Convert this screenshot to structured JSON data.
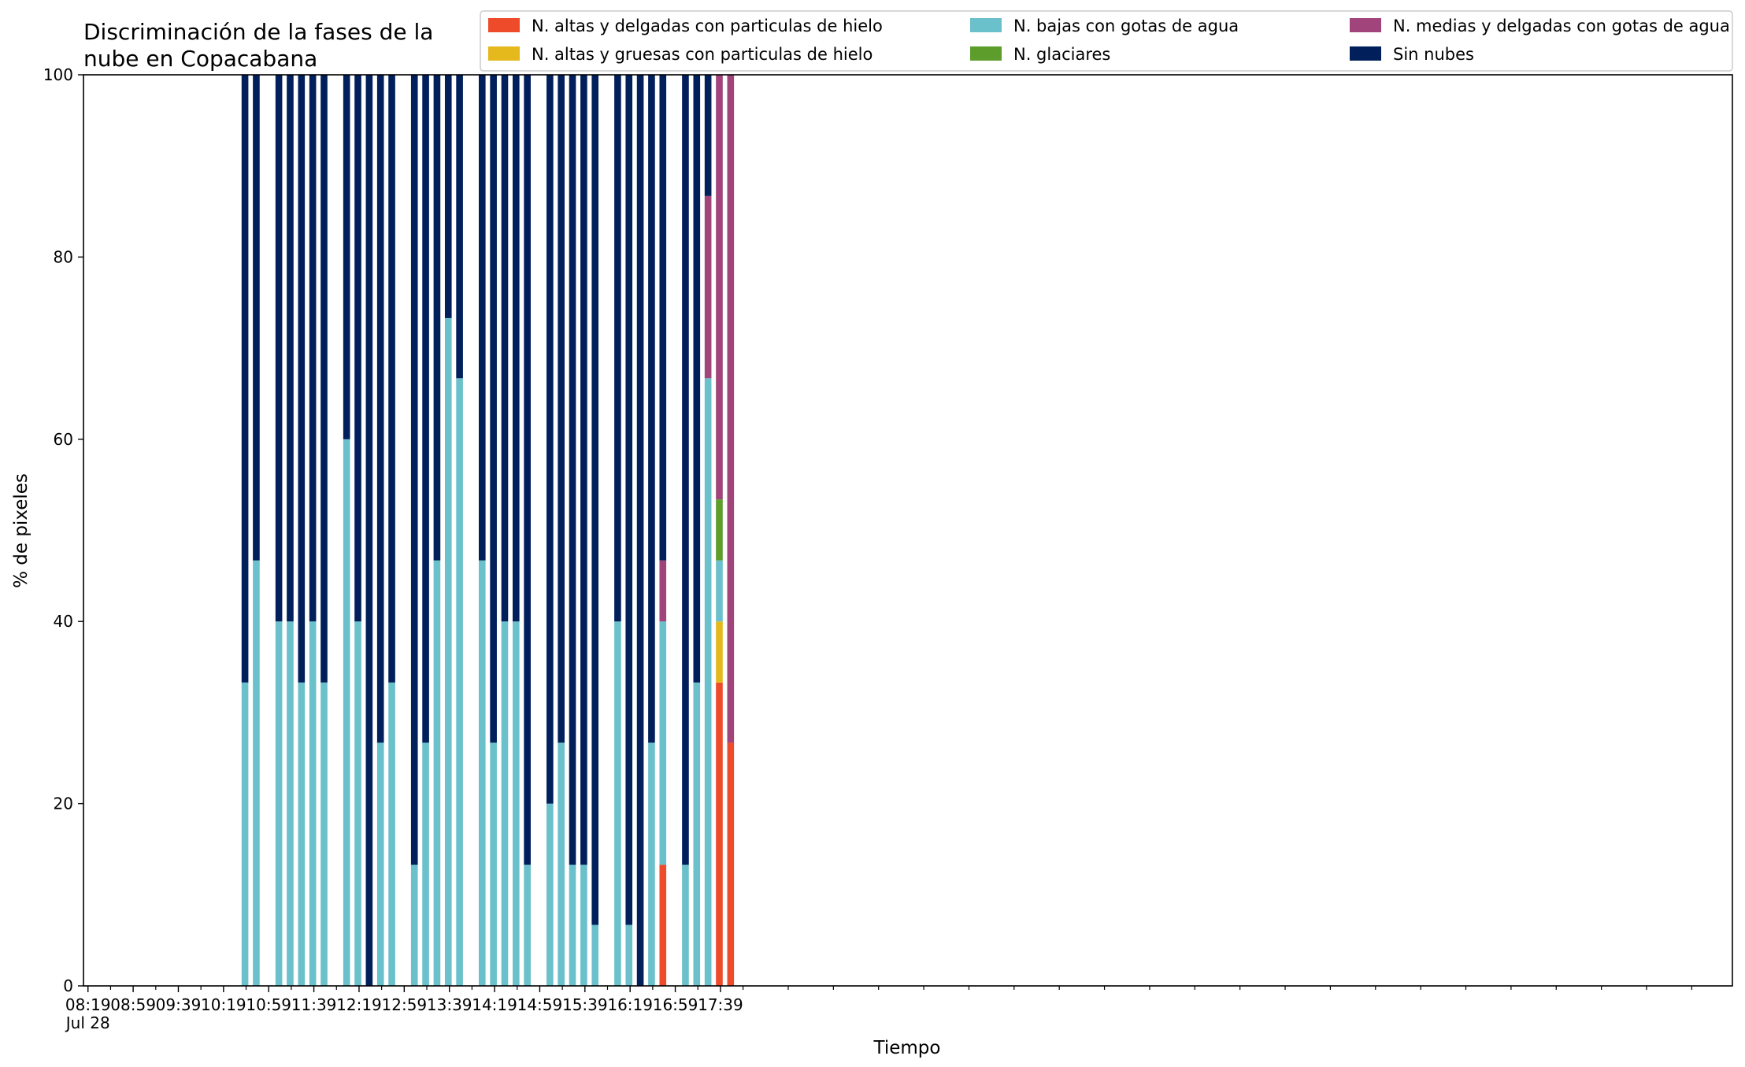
{
  "chart_data": {
    "type": "bar",
    "stacked": true,
    "title_line1": "Discriminación de la fases de la",
    "title_line2": "nube en Copacabana",
    "xlabel": "Tiempo",
    "ylabel": "% de pixeles",
    "ylim": [
      0,
      100
    ],
    "yticks": [
      "0",
      "20",
      "40",
      "60",
      "80",
      "100"
    ],
    "xlim_minutes": [
      -4,
      1456
    ],
    "xticks": [
      {
        "label": "08:19",
        "sub": "Jul 28",
        "minutes": 0
      },
      {
        "label": "08:59",
        "minutes": 40
      },
      {
        "label": "09:39",
        "minutes": 80
      },
      {
        "label": "10:19",
        "minutes": 120
      },
      {
        "label": "10:59",
        "minutes": 160
      },
      {
        "label": "11:39",
        "minutes": 200
      },
      {
        "label": "12:19",
        "minutes": 240
      },
      {
        "label": "12:59",
        "minutes": 280
      },
      {
        "label": "13:39",
        "minutes": 320
      },
      {
        "label": "14:19",
        "minutes": 360
      },
      {
        "label": "14:59",
        "minutes": 400
      },
      {
        "label": "15:39",
        "minutes": 440
      },
      {
        "label": "16:19",
        "minutes": 480
      },
      {
        "label": "16:59",
        "minutes": 520
      },
      {
        "label": "17:39",
        "minutes": 560
      }
    ],
    "grid": false,
    "legend_position": "top-right",
    "series": [
      {
        "name": "N. altas y delgadas con particulas de hielo",
        "color": "#ee4b2b"
      },
      {
        "name": "N. altas y gruesas con particulas de hielo",
        "color": "#e5b81c"
      },
      {
        "name": "N. bajas con gotas de agua",
        "color": "#6ac0cb"
      },
      {
        "name": "N. glaciares",
        "color": "#5c9d2b"
      },
      {
        "name": "N. medias y delgadas con gotas de agua",
        "color": "#a0447b"
      },
      {
        "name": "Sin nubes",
        "color": "#001f5b"
      }
    ],
    "bars": [
      {
        "time": "10:38",
        "values": [
          0,
          0,
          33.3,
          0,
          0,
          66.7
        ]
      },
      {
        "time": "10:48",
        "values": [
          0,
          0,
          46.7,
          0,
          0,
          53.3
        ]
      },
      {
        "time": "11:08",
        "values": [
          0,
          0,
          40,
          0,
          0,
          60
        ]
      },
      {
        "time": "11:18",
        "values": [
          0,
          0,
          40,
          0,
          0,
          60
        ]
      },
      {
        "time": "11:28",
        "values": [
          0,
          0,
          33.3,
          0,
          0,
          66.7
        ]
      },
      {
        "time": "11:38",
        "values": [
          0,
          0,
          40,
          0,
          0,
          60
        ]
      },
      {
        "time": "11:48",
        "values": [
          0,
          0,
          33.3,
          0,
          0,
          66.7
        ]
      },
      {
        "time": "12:08",
        "values": [
          0,
          0,
          60,
          0,
          0,
          40
        ]
      },
      {
        "time": "12:18",
        "values": [
          0,
          0,
          40,
          0,
          0,
          60
        ]
      },
      {
        "time": "12:28",
        "values": [
          0,
          0,
          0,
          0,
          0,
          100
        ]
      },
      {
        "time": "12:38",
        "values": [
          0,
          0,
          26.7,
          0,
          0,
          73.3
        ]
      },
      {
        "time": "12:48",
        "values": [
          0,
          0,
          33.3,
          0,
          0,
          66.7
        ]
      },
      {
        "time": "13:08",
        "values": [
          0,
          0,
          13.3,
          0,
          0,
          86.7
        ]
      },
      {
        "time": "13:18",
        "values": [
          0,
          0,
          26.7,
          0,
          0,
          73.3
        ]
      },
      {
        "time": "13:28",
        "values": [
          0,
          0,
          46.7,
          0,
          0,
          53.3
        ]
      },
      {
        "time": "13:38",
        "values": [
          0,
          0,
          73.3,
          0,
          0,
          26.7
        ]
      },
      {
        "time": "13:48",
        "values": [
          0,
          0,
          66.7,
          0,
          0,
          33.3
        ]
      },
      {
        "time": "14:08",
        "values": [
          0,
          0,
          46.7,
          0,
          0,
          53.3
        ]
      },
      {
        "time": "14:18",
        "values": [
          0,
          0,
          26.7,
          0,
          0,
          73.3
        ]
      },
      {
        "time": "14:28",
        "values": [
          0,
          0,
          40,
          0,
          0,
          60
        ]
      },
      {
        "time": "14:38",
        "values": [
          0,
          0,
          40,
          0,
          0,
          60
        ]
      },
      {
        "time": "14:48",
        "values": [
          0,
          0,
          13.3,
          0,
          0,
          86.7
        ]
      },
      {
        "time": "15:08",
        "values": [
          0,
          0,
          20,
          0,
          0,
          80
        ]
      },
      {
        "time": "15:18",
        "values": [
          0,
          0,
          26.7,
          0,
          0,
          73.3
        ]
      },
      {
        "time": "15:28",
        "values": [
          0,
          0,
          13.3,
          0,
          0,
          86.7
        ]
      },
      {
        "time": "15:38",
        "values": [
          0,
          0,
          13.3,
          0,
          0,
          86.7
        ]
      },
      {
        "time": "15:48",
        "values": [
          0,
          0,
          6.7,
          0,
          0,
          93.3
        ]
      },
      {
        "time": "16:08",
        "values": [
          0,
          0,
          40,
          0,
          0,
          60
        ]
      },
      {
        "time": "16:18",
        "values": [
          0,
          0,
          6.7,
          0,
          0,
          93.3
        ]
      },
      {
        "time": "16:28",
        "values": [
          0,
          0,
          0,
          0,
          0,
          100
        ]
      },
      {
        "time": "16:38",
        "values": [
          0,
          0,
          26.7,
          0,
          0,
          73.3
        ]
      },
      {
        "time": "16:48",
        "values": [
          13.3,
          0,
          26.7,
          0,
          6.7,
          53.3
        ]
      },
      {
        "time": "17:08",
        "values": [
          0,
          0,
          13.3,
          0,
          0,
          86.7
        ]
      },
      {
        "time": "17:18",
        "values": [
          0,
          0,
          33.3,
          0,
          0,
          66.7
        ]
      },
      {
        "time": "17:28",
        "values": [
          0,
          0,
          66.7,
          0,
          20,
          13.3
        ]
      },
      {
        "time": "17:38",
        "values": [
          33.3,
          6.7,
          6.7,
          6.7,
          46.6,
          0
        ]
      },
      {
        "time": "17:48",
        "values": [
          26.7,
          0,
          0,
          0,
          73.3,
          0
        ]
      }
    ]
  }
}
